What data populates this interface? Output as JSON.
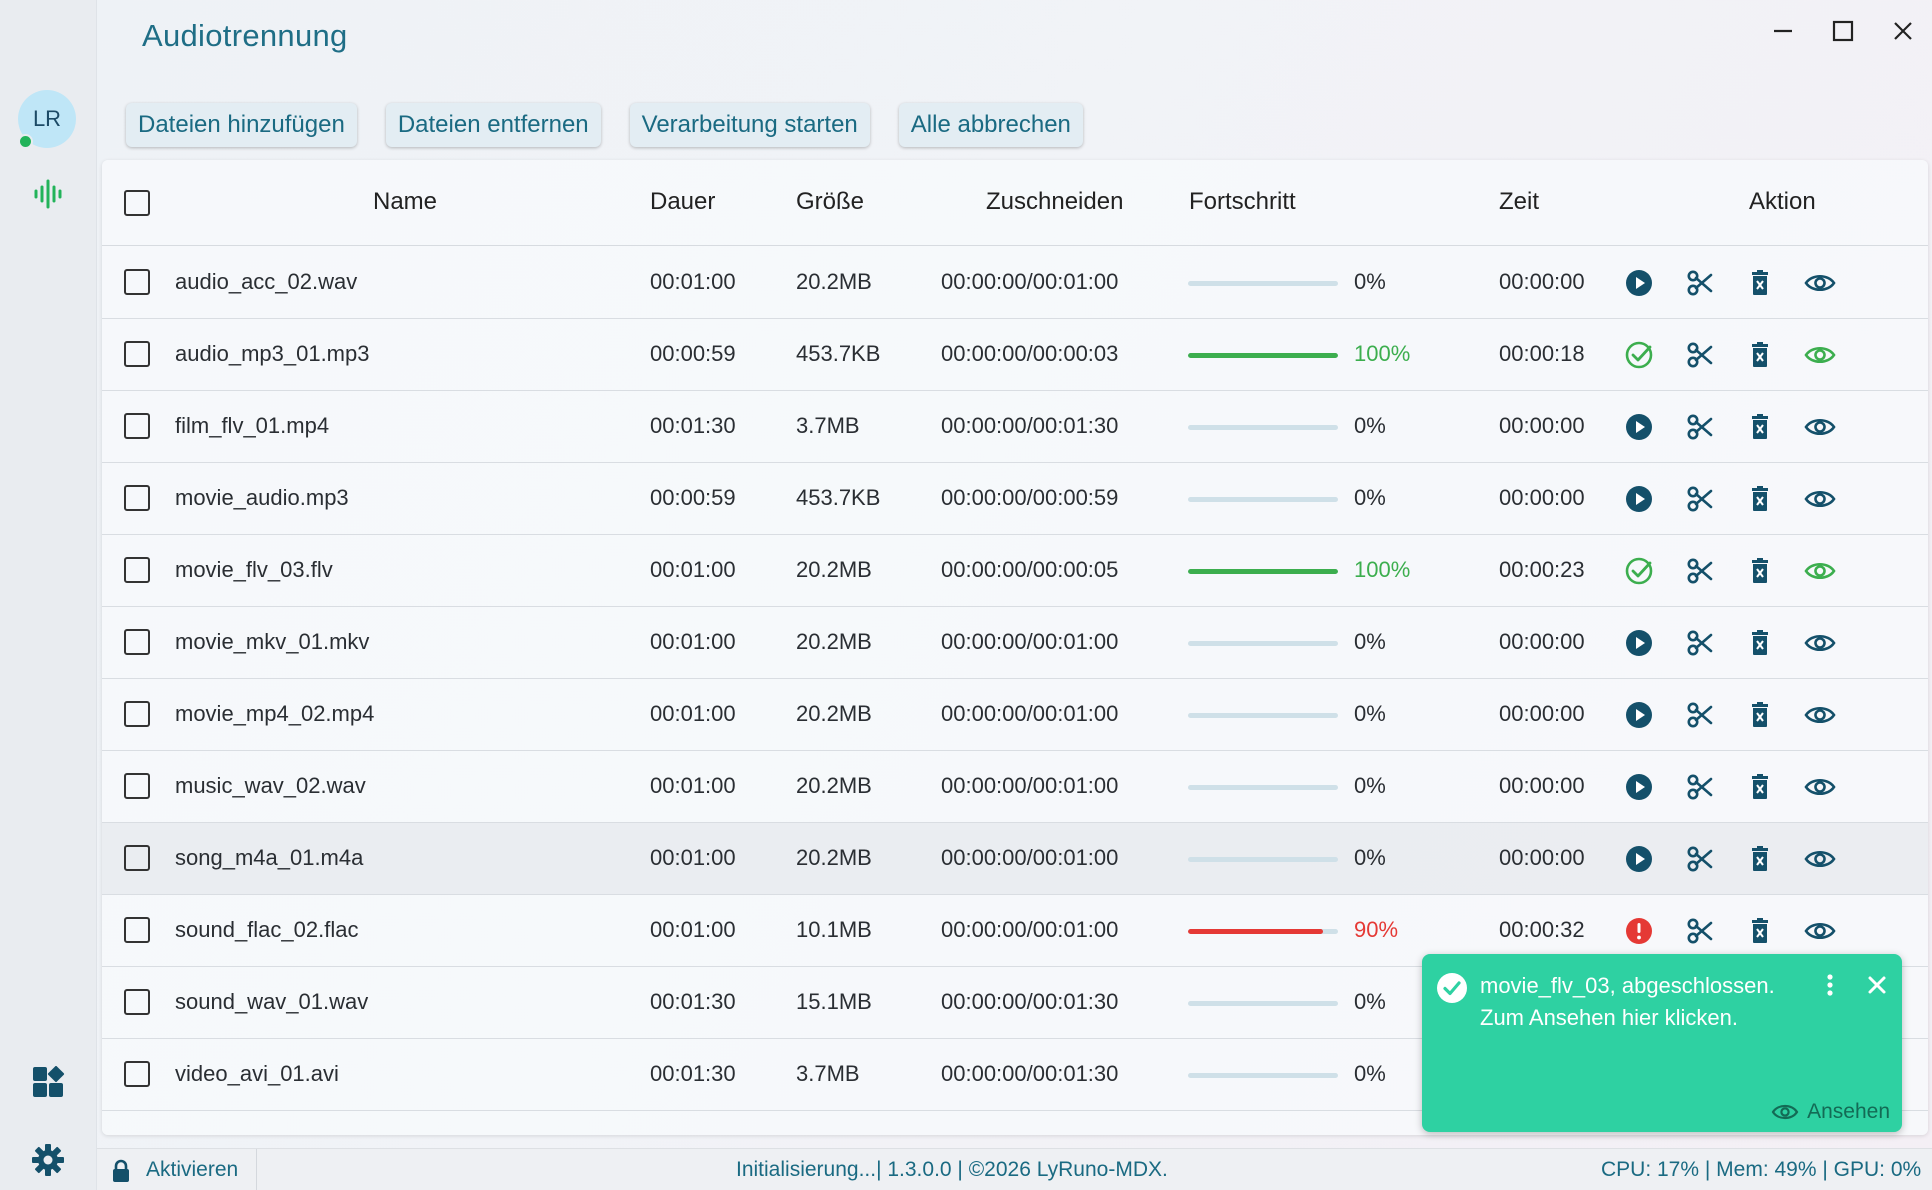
{
  "app": {
    "title": "Audiotrennung"
  },
  "sidebar": {
    "avatar_initials": "LR",
    "status": "online"
  },
  "toolbar": {
    "add_files": "Dateien hinzufügen",
    "remove_files": "Dateien entfernen",
    "start_processing": "Verarbeitung starten",
    "cancel_all": "Alle abbrechen"
  },
  "table": {
    "columns": {
      "name": "Name",
      "duration": "Dauer",
      "size": "Größe",
      "trim": "Zuschneiden",
      "progress": "Fortschritt",
      "time": "Zeit",
      "action": "Aktion"
    },
    "rows": [
      {
        "name": "audio_acc_02.wav",
        "duration": "00:01:00",
        "size": "20.2MB",
        "trim": "00:00:00/00:01:00",
        "progress": 0,
        "progress_label": "0%",
        "time": "00:00:00",
        "status": "pending"
      },
      {
        "name": "audio_mp3_01.mp3",
        "duration": "00:00:59",
        "size": "453.7KB",
        "trim": "00:00:00/00:00:03",
        "progress": 100,
        "progress_label": "100%",
        "time": "00:00:18",
        "status": "done"
      },
      {
        "name": "film_flv_01.mp4",
        "duration": "00:01:30",
        "size": "3.7MB",
        "trim": "00:00:00/00:01:30",
        "progress": 0,
        "progress_label": "0%",
        "time": "00:00:00",
        "status": "pending"
      },
      {
        "name": "movie_audio.mp3",
        "duration": "00:00:59",
        "size": "453.7KB",
        "trim": "00:00:00/00:00:59",
        "progress": 0,
        "progress_label": "0%",
        "time": "00:00:00",
        "status": "pending"
      },
      {
        "name": "movie_flv_03.flv",
        "duration": "00:01:00",
        "size": "20.2MB",
        "trim": "00:00:00/00:00:05",
        "progress": 100,
        "progress_label": "100%",
        "time": "00:00:23",
        "status": "done"
      },
      {
        "name": "movie_mkv_01.mkv",
        "duration": "00:01:00",
        "size": "20.2MB",
        "trim": "00:00:00/00:01:00",
        "progress": 0,
        "progress_label": "0%",
        "time": "00:00:00",
        "status": "pending"
      },
      {
        "name": "movie_mp4_02.mp4",
        "duration": "00:01:00",
        "size": "20.2MB",
        "trim": "00:00:00/00:01:00",
        "progress": 0,
        "progress_label": "0%",
        "time": "00:00:00",
        "status": "pending"
      },
      {
        "name": "music_wav_02.wav",
        "duration": "00:01:00",
        "size": "20.2MB",
        "trim": "00:00:00/00:01:00",
        "progress": 0,
        "progress_label": "0%",
        "time": "00:00:00",
        "status": "pending"
      },
      {
        "name": "song_m4a_01.m4a",
        "duration": "00:01:00",
        "size": "20.2MB",
        "trim": "00:00:00/00:01:00",
        "progress": 0,
        "progress_label": "0%",
        "time": "00:00:00",
        "status": "pending"
      },
      {
        "name": "sound_flac_02.flac",
        "duration": "00:01:00",
        "size": "10.1MB",
        "trim": "00:00:00/00:01:00",
        "progress": 90,
        "progress_label": "90%",
        "time": "00:00:32",
        "status": "error"
      },
      {
        "name": "sound_wav_01.wav",
        "duration": "00:01:30",
        "size": "15.1MB",
        "trim": "00:00:00/00:01:30",
        "progress": 0,
        "progress_label": "0%",
        "time": "",
        "status": "hidden"
      },
      {
        "name": "video_avi_01.avi",
        "duration": "00:01:30",
        "size": "3.7MB",
        "trim": "00:00:00/00:01:30",
        "progress": 0,
        "progress_label": "0%",
        "time": "",
        "status": "hidden"
      }
    ]
  },
  "statusbar": {
    "activate": "Aktivieren",
    "center": "Initialisierung...| 1.3.0.0 | ©2026 LyRuno-MDX.",
    "metrics": "CPU: 17% | Mem: 49% | GPU: 0%"
  },
  "toast": {
    "message": "movie_flv_03, abgeschlossen. Zum Ansehen hier klicken.",
    "view_label": "Ansehen"
  },
  "colors": {
    "accent": "#1a6a82",
    "icon_dark": "#14506a",
    "success": "#3cae4e",
    "error": "#e53935",
    "toast_bg": "#2ed1a2",
    "progress_track": "#cfe0e8"
  }
}
